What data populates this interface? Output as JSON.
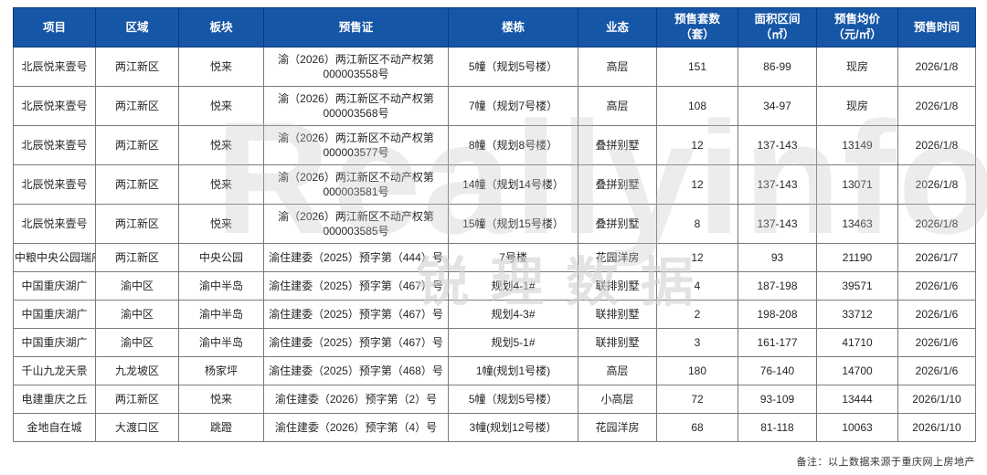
{
  "chart_data": {
    "type": "table",
    "title": "",
    "columns": [
      {
        "key": "project",
        "label": "项目"
      },
      {
        "key": "district",
        "label": "区域"
      },
      {
        "key": "sector",
        "label": "板块"
      },
      {
        "key": "permit",
        "label": "预售证"
      },
      {
        "key": "building",
        "label": "楼栋"
      },
      {
        "key": "biz_type",
        "label": "业态"
      },
      {
        "key": "units",
        "label": "预售套数\n（套）"
      },
      {
        "key": "area",
        "label": "面积区间\n（㎡）"
      },
      {
        "key": "price",
        "label": "预售均价\n（元/㎡）"
      },
      {
        "key": "date",
        "label": "预售时间"
      }
    ],
    "rows": [
      [
        "北辰悦来壹号",
        "两江新区",
        "悦来",
        "渝（2026）两江新区不动产权第\n000003558号",
        "5幢（规划5号楼）",
        "高层",
        "151",
        "86-99",
        "现房",
        "2026/1/8"
      ],
      [
        "北辰悦来壹号",
        "两江新区",
        "悦来",
        "渝（2026）两江新区不动产权第\n000003568号",
        "7幢（规划7号楼）",
        "高层",
        "108",
        "34-97",
        "现房",
        "2026/1/8"
      ],
      [
        "北辰悦来壹号",
        "两江新区",
        "悦来",
        "渝（2026）两江新区不动产权第\n000003577号",
        "8幢（规划8号楼）",
        "叠拼别墅",
        "12",
        "137-143",
        "13149",
        "2026/1/8"
      ],
      [
        "北辰悦来壹号",
        "两江新区",
        "悦来",
        "渝（2026）两江新区不动产权第\n000003581号",
        "14幢（规划14号楼）",
        "叠拼别墅",
        "12",
        "137-143",
        "13071",
        "2026/1/8"
      ],
      [
        "北辰悦来壹号",
        "两江新区",
        "悦来",
        "渝（2026）两江新区不动产权第\n000003585号",
        "15幢（规划15号楼）",
        "叠拼别墅",
        "8",
        "137-143",
        "13463",
        "2026/1/8"
      ],
      [
        "中粮中央公园瑞府",
        "两江新区",
        "中央公园",
        "渝住建委（2025）预字第（444）号",
        "7号楼",
        "花园洋房",
        "12",
        "93",
        "21190",
        "2026/1/7"
      ],
      [
        "中国重庆湖广",
        "渝中区",
        "渝中半岛",
        "渝住建委（2025）预字第（467）号",
        "规划4-1#",
        "联排别墅",
        "4",
        "187-198",
        "39571",
        "2026/1/6"
      ],
      [
        "中国重庆湖广",
        "渝中区",
        "渝中半岛",
        "渝住建委（2025）预字第（467）号",
        "规划4-3#",
        "联排别墅",
        "2",
        "198-208",
        "33712",
        "2026/1/6"
      ],
      [
        "中国重庆湖广",
        "渝中区",
        "渝中半岛",
        "渝住建委（2025）预字第（467）号",
        "规划5-1#",
        "联排别墅",
        "3",
        "161-177",
        "41710",
        "2026/1/6"
      ],
      [
        "千山九龙天景",
        "九龙坡区",
        "杨家坪",
        "渝住建委（2025）预字第（468）号",
        "1幢(规划1号楼)",
        "高层",
        "180",
        "76-140",
        "14700",
        "2026/1/6"
      ],
      [
        "电建重庆之丘",
        "两江新区",
        "悦来",
        "渝住建委（2026）预字第（2）号",
        "5幢（规划5号楼）",
        "小高层",
        "72",
        "93-109",
        "13444",
        "2026/1/10"
      ],
      [
        "金地自在城",
        "大渡口区",
        "跳蹬",
        "渝住建委（2026）预字第（4）号",
        "3幢(规划12号楼）",
        "花园洋房",
        "68",
        "81-118",
        "10063",
        "2026/1/10"
      ]
    ],
    "layout_hints": {
      "header_bg": "#1656A6",
      "header_divider": "#0C3B7C",
      "header_text": "#FFFFFF",
      "body_border": "#7A7A7A",
      "body_text": "#262626",
      "grid": true
    }
  },
  "watermark": {
    "en": "Reallyinfo",
    "cn": "锐理数据"
  },
  "footnote": "备注：以上数据来源于重庆网上房地产"
}
